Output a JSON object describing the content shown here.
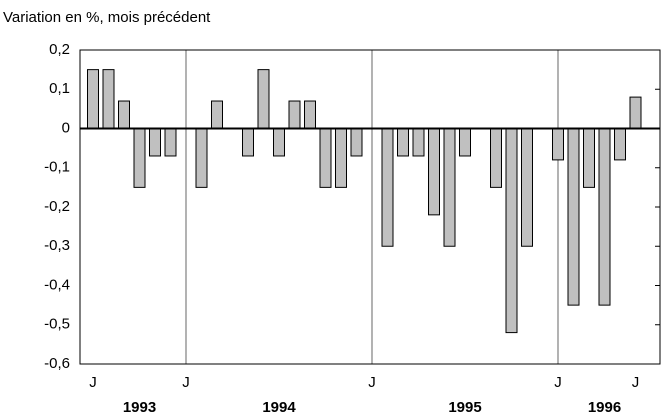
{
  "chart_data": {
    "type": "bar",
    "title": "Variation en %, mois précédent",
    "categories": [
      "J",
      null,
      null,
      null,
      null,
      null,
      "J",
      null,
      null,
      null,
      null,
      null,
      null,
      null,
      null,
      null,
      null,
      null,
      "J",
      null,
      null,
      null,
      null,
      null,
      null,
      null,
      null,
      null,
      null,
      null,
      "J",
      null,
      null,
      null,
      null,
      "J"
    ],
    "years": [
      null,
      null,
      null,
      "1993",
      null,
      null,
      null,
      null,
      null,
      null,
      null,
      null,
      "1994",
      null,
      null,
      null,
      null,
      null,
      null,
      null,
      null,
      null,
      null,
      null,
      "1995",
      null,
      null,
      null,
      null,
      null,
      null,
      null,
      null,
      "1996",
      null,
      null
    ],
    "values": [
      0.15,
      0.15,
      0.07,
      -0.15,
      -0.07,
      -0.07,
      0,
      -0.15,
      0.07,
      0,
      -0.07,
      0.15,
      -0.07,
      0.07,
      0.07,
      -0.15,
      -0.15,
      -0.07,
      0,
      -0.3,
      -0.07,
      -0.07,
      -0.22,
      -0.3,
      -0.07,
      0,
      -0.15,
      -0.52,
      -0.3,
      0,
      -0.08,
      -0.45,
      -0.15,
      -0.45,
      -0.08,
      0.08
    ],
    "color": "#c0c0c0",
    "ylim": [
      -0.6,
      0.2
    ],
    "yticks": [
      {
        "value": -0.6,
        "label": "-0,6"
      },
      {
        "value": -0.5,
        "label": "-0,5"
      },
      {
        "value": -0.4,
        "label": "-0,4"
      },
      {
        "value": -0.3,
        "label": "-0,3"
      },
      {
        "value": -0.2,
        "label": "-0,2"
      },
      {
        "value": -0.1,
        "label": "-0,1"
      },
      0,
      {
        "value": 0.1,
        "label": "0,1"
      },
      {
        "value": 0.2,
        "label": "0,2"
      }
    ],
    "grid": false
  }
}
